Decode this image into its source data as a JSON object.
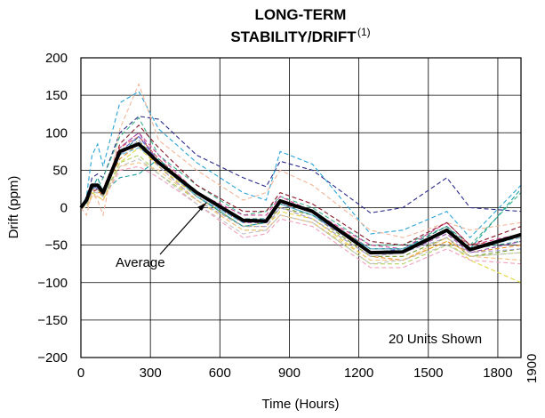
{
  "chart_data": {
    "type": "line",
    "title_line1": "LONG-TERM",
    "title_line2": "STABILITY/DRIFT",
    "title_superscript": "(1)",
    "xlabel": "Time (Hours)",
    "ylabel": "Drift (ppm)",
    "xlim": [
      0,
      1900
    ],
    "ylim": [
      -200,
      200
    ],
    "x_ticks": [
      "0",
      "300",
      "600",
      "900",
      "1200",
      "1500",
      "1800",
      "1900"
    ],
    "y_ticks": [
      "200",
      "150",
      "100",
      "50",
      "0",
      "−50",
      "−100",
      "−150",
      "−200"
    ],
    "grid": true,
    "annotations": {
      "average_label": "Average",
      "units_label": "20 Units Shown"
    },
    "average": {
      "x": [
        0,
        24,
        48,
        72,
        96,
        168,
        250,
        336,
        500,
        700,
        800,
        860,
        1000,
        1250,
        1390,
        1580,
        1680,
        1900
      ],
      "y": [
        0,
        10,
        30,
        30,
        20,
        75,
        85,
        60,
        20,
        -17,
        -18,
        9,
        -5,
        -60,
        -59,
        -30,
        -56,
        -36
      ]
    },
    "series_x": [
      0,
      24,
      48,
      72,
      96,
      168,
      250,
      336,
      500,
      700,
      800,
      860,
      1000,
      1250,
      1390,
      1580,
      1680,
      1900
    ],
    "series": [
      {
        "color": "#2a2a8a",
        "values": [
          0,
          8,
          40,
          45,
          40,
          100,
          122,
          118,
          70,
          40,
          28,
          62,
          50,
          -7,
          0,
          40,
          0,
          -5
        ]
      },
      {
        "color": "#29a3d6",
        "values": [
          0,
          15,
          70,
          85,
          55,
          140,
          155,
          105,
          60,
          20,
          10,
          75,
          58,
          -35,
          -30,
          -5,
          -40,
          30
        ]
      },
      {
        "color": "#f2b59a",
        "values": [
          0,
          -10,
          20,
          10,
          -10,
          105,
          165,
          90,
          50,
          10,
          20,
          50,
          30,
          -30,
          -40,
          -20,
          -30,
          -20
        ]
      },
      {
        "color": "#3fb28a",
        "values": [
          0,
          5,
          30,
          25,
          40,
          95,
          120,
          70,
          30,
          -10,
          -5,
          15,
          0,
          -50,
          -50,
          -25,
          -50,
          20
        ]
      },
      {
        "color": "#d6409a",
        "values": [
          0,
          5,
          25,
          25,
          15,
          80,
          100,
          70,
          20,
          -10,
          -10,
          15,
          -5,
          -50,
          -55,
          -20,
          -50,
          -35
        ]
      },
      {
        "color": "#8a1a2a",
        "values": [
          0,
          5,
          20,
          25,
          15,
          85,
          110,
          80,
          30,
          -5,
          -5,
          20,
          5,
          -45,
          -50,
          -20,
          -50,
          -25
        ]
      },
      {
        "color": "#1a7a7a",
        "values": [
          0,
          10,
          25,
          30,
          20,
          70,
          95,
          65,
          20,
          -15,
          -15,
          10,
          -5,
          -55,
          -55,
          -25,
          -55,
          -45
        ]
      },
      {
        "color": "#e0d53a",
        "values": [
          0,
          0,
          20,
          15,
          10,
          60,
          80,
          55,
          15,
          -25,
          -25,
          -5,
          -15,
          -70,
          -70,
          -45,
          -70,
          -100
        ]
      },
      {
        "color": "#7a9a2a",
        "values": [
          0,
          5,
          25,
          25,
          15,
          70,
          90,
          60,
          15,
          -25,
          -20,
          0,
          -10,
          -65,
          -65,
          -40,
          -65,
          -55
        ]
      },
      {
        "color": "#e88a2a",
        "values": [
          0,
          5,
          25,
          20,
          20,
          65,
          85,
          55,
          10,
          -25,
          -25,
          0,
          -15,
          -65,
          -70,
          -45,
          -60,
          -50
        ]
      },
      {
        "color": "#9a4aaa",
        "values": [
          0,
          5,
          30,
          25,
          20,
          80,
          100,
          60,
          15,
          -20,
          -20,
          5,
          -10,
          -60,
          -60,
          -35,
          -60,
          -45
        ]
      },
      {
        "color": "#e06060",
        "values": [
          0,
          8,
          30,
          30,
          25,
          80,
          95,
          65,
          20,
          -20,
          -15,
          5,
          -5,
          -55,
          -55,
          -30,
          -50,
          -40
        ]
      },
      {
        "color": "#5a6ad6",
        "values": [
          0,
          5,
          30,
          25,
          20,
          75,
          95,
          60,
          15,
          -20,
          -15,
          5,
          -10,
          -60,
          -55,
          -30,
          -55,
          -35
        ]
      },
      {
        "color": "#a8a8d8",
        "values": [
          0,
          5,
          25,
          25,
          20,
          70,
          90,
          55,
          10,
          -25,
          -25,
          0,
          -15,
          -65,
          -60,
          -40,
          -60,
          -55
        ]
      },
      {
        "color": "#b0d060",
        "values": [
          0,
          3,
          20,
          20,
          15,
          60,
          70,
          45,
          10,
          -30,
          -30,
          -10,
          -20,
          -75,
          -75,
          -50,
          -65,
          -60
        ]
      },
      {
        "color": "#f0a0c0",
        "values": [
          0,
          0,
          15,
          15,
          10,
          50,
          55,
          40,
          5,
          -40,
          -35,
          -15,
          -25,
          -80,
          -80,
          -55,
          -70,
          -75
        ]
      },
      {
        "color": "#1aa0a0",
        "values": [
          0,
          10,
          25,
          40,
          20,
          40,
          45,
          65,
          15,
          -25,
          -20,
          5,
          -10,
          -55,
          -55,
          -30,
          -55,
          25
        ]
      },
      {
        "color": "#f2c080",
        "values": [
          0,
          0,
          15,
          15,
          10,
          55,
          60,
          50,
          10,
          -30,
          -30,
          -10,
          -20,
          -70,
          -70,
          -40,
          -65,
          -70
        ]
      },
      {
        "color": "#c0c0c0",
        "values": [
          0,
          5,
          20,
          20,
          15,
          55,
          65,
          45,
          5,
          -35,
          -30,
          -10,
          -20,
          -75,
          -70,
          -50,
          -65,
          -60
        ]
      },
      {
        "color": "#6ac0e0",
        "values": [
          0,
          10,
          30,
          30,
          25,
          70,
          80,
          60,
          15,
          -20,
          -15,
          5,
          -10,
          -55,
          -55,
          -30,
          -55,
          -40
        ]
      }
    ]
  }
}
